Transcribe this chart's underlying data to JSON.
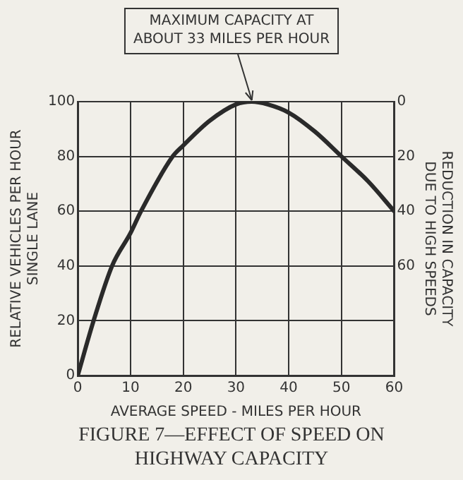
{
  "chart_data": {
    "type": "line",
    "title": "FIGURE 7—EFFECT OF SPEED ON HIGHWAY CAPACITY",
    "xlabel": "AVERAGE SPEED - MILES PER HOUR",
    "ylabel": "RELATIVE VEHICLES PER HOUR\nSINGLE LANE",
    "y2label": "REDUCTION IN CAPACITY\nDUE TO HIGH SPEEDS",
    "annotations": [
      {
        "text": "MAXIMUM CAPACITY AT\nABOUT 33 MILES PER HOUR",
        "x": 33,
        "y": 100
      }
    ],
    "series": [
      {
        "color": "#2a2a2a",
        "x": [
          0,
          3,
          6.5,
          10,
          12,
          18,
          20,
          25,
          30,
          33,
          36,
          40,
          45,
          50,
          55,
          60
        ],
        "values": [
          0,
          20,
          40,
          52,
          60,
          80,
          84,
          93,
          99,
          100,
          99,
          96,
          89,
          80,
          71,
          60
        ]
      }
    ],
    "xlim": [
      0,
      60
    ],
    "xticks": [
      0,
      10,
      20,
      30,
      40,
      50,
      60
    ],
    "ylim": [
      0,
      100
    ],
    "yticks": [
      0,
      20,
      40,
      60,
      80,
      100
    ],
    "y2lim": [
      100,
      0
    ],
    "y2ticks": [
      0,
      20,
      40,
      60
    ],
    "grid": true,
    "legend": false,
    "marker": "none",
    "line_style": "solid"
  }
}
